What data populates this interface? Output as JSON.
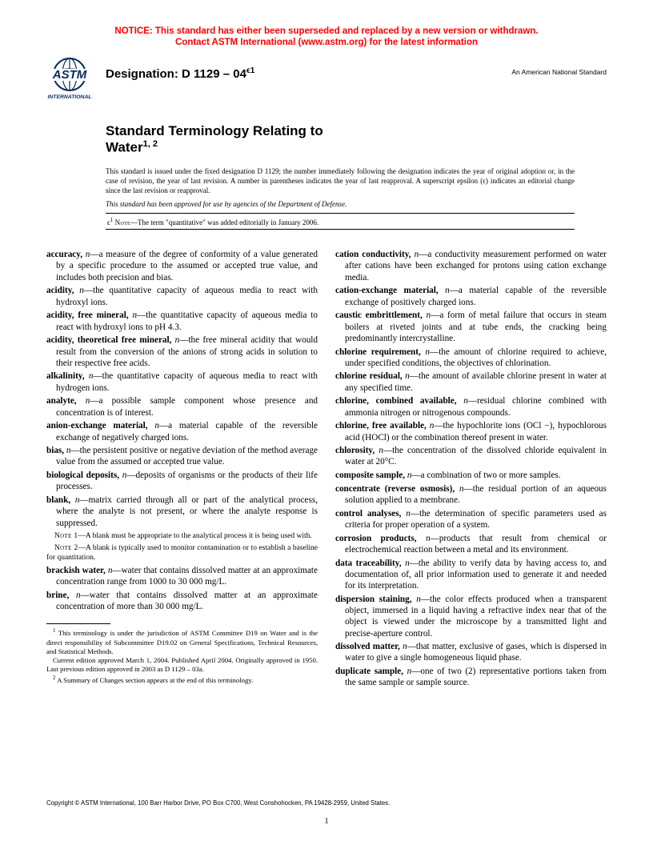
{
  "notice": {
    "line1": "NOTICE: This standard has either been superseded and replaced by a new version or withdrawn.",
    "line2": "Contact ASTM International (www.astm.org) for the latest information"
  },
  "header": {
    "logo_text_top": "ASTM",
    "logo_text_bottom": "INTERNATIONAL",
    "designation_label": "Designation: D 1129 – 04",
    "designation_eps": "ϵ1",
    "ans_label": "An American National Standard"
  },
  "title": {
    "line1": "Standard Terminology Relating to",
    "line2": "Water",
    "sup": "1, 2"
  },
  "preamble": "This standard is issued under the fixed designation D 1129; the number immediately following the designation indicates the year of original adoption or, in the case of revision, the year of last revision. A number in parentheses indicates the year of last reapproval. A superscript epsilon (ϵ) indicates an editorial change since the last revision or reapproval.",
  "approval": "This standard has been approved for use by agencies of the Department of Defense.",
  "eps_note": {
    "sym": "ϵ",
    "sup": "1",
    "label": "Note",
    "text": "—The term \"quantitative\" was added editorially in January 2006."
  },
  "left_defs": [
    {
      "term": "accuracy,",
      "pos": "n",
      "def": "—a measure of the degree of conformity of a value generated by a specific procedure to the assumed or accepted true value, and includes both precision and bias."
    },
    {
      "term": "acidity,",
      "pos": "n",
      "def": "—the quantitative capacity of aqueous media to react with hydroxyl ions."
    },
    {
      "term": "acidity, free mineral,",
      "pos": "n",
      "def": "—the quantitative capacity of aqueous media to react with hydroxyl ions to pH 4.3."
    },
    {
      "term": "acidity, theoretical free mineral,",
      "pos": "n",
      "def": "—the free mineral acidity that would result from the conversion of the anions of strong acids in solution to their respective free acids."
    },
    {
      "term": "alkalinity,",
      "pos": "n",
      "def": "—the quantitative capacity of aqueous media to react with hydrogen ions."
    },
    {
      "term": "analyte,",
      "pos": "n",
      "def": "—a possible sample component whose presence and concentration is of interest."
    },
    {
      "term": "anion-exchange material,",
      "pos": "n",
      "def": "—a material capable of the reversible exchange of negatively charged ions."
    },
    {
      "term": "bias,",
      "pos": "n",
      "def": "—the persistent positive or negative deviation of the method average value from the assumed or accepted true value."
    },
    {
      "term": "biological deposits,",
      "pos": "n",
      "def": "—deposits of organisms or the products of their life processes."
    },
    {
      "term": "blank,",
      "pos": "n",
      "def": "—matrix carried through all or part of the analytical process, where the analyte is not present, or where the analyte response is suppressed."
    }
  ],
  "left_notes": [
    {
      "label": "Note 1",
      "text": "—A blank must be appropriate to the analytical process it is being used with."
    },
    {
      "label": "Note 2",
      "text": "—A blank is typically used to monitor contamination or to establish a baseline for quantitation."
    }
  ],
  "left_defs2": [
    {
      "term": "brackish water,",
      "pos": "n",
      "def": "—water that contains dissolved matter at an approximate concentration range from 1000 to 30 000 mg/L."
    },
    {
      "term": "brine,",
      "pos": "n",
      "def": "—water that contains dissolved matter at an approximate concentration of more than 30 000 mg/L."
    }
  ],
  "footnotes": [
    {
      "sup": "1",
      "text": " This terminology is under the jurisdiction of ASTM Committee D19 on Water and is the direct responsibility of Subcommittee D19.02 on General Specifications, Technical Resources, and Statistical Methods."
    },
    {
      "sup": "",
      "text": "Current edition approved March 1, 2004. Published April 2004. Originally approved in 1950. Last previous edition approved in 2003 as D 1129 – 03a."
    },
    {
      "sup": "2",
      "text": " A Summary of Changes section appears at the end of this terminology."
    }
  ],
  "right_defs": [
    {
      "term": "cation conductivity,",
      "pos": "n",
      "def": "—a conductivity measurement performed on water after cations have been exchanged for protons using cation exchange media."
    },
    {
      "term": "cation-exchange material,",
      "pos": "n",
      "def": "—a material capable of the reversible exchange of positively charged ions."
    },
    {
      "term": "caustic embrittlement,",
      "pos": "n",
      "def": "—a form of metal failure that occurs in steam boilers at riveted joints and at tube ends, the cracking being predominantly intercrystalline."
    },
    {
      "term": "chlorine requirement,",
      "pos": "n",
      "def": "—the amount of chlorine required to achieve, under specified conditions, the objectives of chlorination."
    },
    {
      "term": "chlorine residual,",
      "pos": "n",
      "def": "—the amount of available chlorine present in water at any specified time."
    },
    {
      "term": "chlorine, combined available,",
      "pos": "n",
      "def": "—residual chlorine combined with ammonia nitrogen or nitrogenous compounds."
    },
    {
      "term": "chlorine, free available,",
      "pos": "n",
      "def": "—the hypochlorite ions (OCl −), hypochlorous acid (HOCl) or the combination thereof present in water."
    },
    {
      "term": "chlorosity,",
      "pos": "n",
      "def": "—the concentration of the dissolved chloride equivalent in water at 20°C."
    },
    {
      "term": "composite sample,",
      "pos": "n",
      "def": "—a combination of two or more samples."
    },
    {
      "term": "concentrate (reverse osmosis),",
      "pos": "n",
      "def": "—the residual portion of an aqueous solution applied to a membrane."
    },
    {
      "term": "control analyses,",
      "pos": "n",
      "def": "—the determination of specific parameters used as criteria for proper operation of a system."
    },
    {
      "term": "corrosion products,",
      "pos": "n",
      "def": "—products that result from chemical or electrochemical reaction between a metal and its environment."
    },
    {
      "term": "data traceability,",
      "pos": "n",
      "def": "—the ability to verify data by having access to, and documentation of, all prior information used to generate it and needed for its interpretation."
    },
    {
      "term": "dispersion staining,",
      "pos": "n",
      "def": "—the color effects produced when a transparent object, immersed in a liquid having a refractive index near that of the object is viewed under the microscope by a transmitted light and precise-aperture control."
    },
    {
      "term": "dissolved matter,",
      "pos": "n",
      "def": "—that matter, exclusive of gases, which is dispersed in water to give a single homogeneous liquid phase."
    },
    {
      "term": "duplicate sample,",
      "pos": "n",
      "def": "—one of two (2) representative portions taken from the same sample or sample source."
    }
  ],
  "copyright": "Copyright © ASTM International, 100 Barr Harbor Drive, PO Box C700, West Conshohocken, PA 19428-2959, United States.",
  "page_num": "1"
}
